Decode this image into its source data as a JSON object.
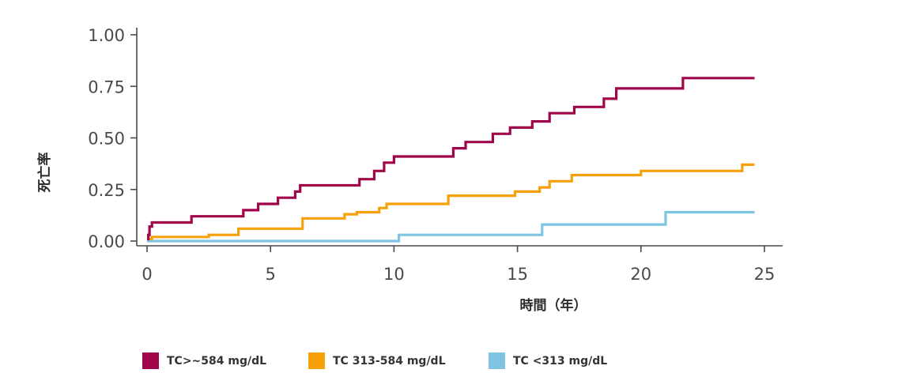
{
  "chart_data": {
    "type": "line",
    "step": true,
    "xlabel": "時間（年）",
    "ylabel": "死亡率",
    "xlim": [
      0,
      25
    ],
    "ylim": [
      0,
      1
    ],
    "xticks": [
      "0",
      "5",
      "10",
      "15",
      "20",
      "25"
    ],
    "yticks": [
      "0.00",
      "0.25",
      "0.50",
      "0.75",
      "1.00"
    ],
    "grid": false,
    "legend_position": "bottom",
    "series": [
      {
        "name": "TC>~584 mg/dL",
        "color": "#a0064a",
        "x": [
          0,
          0.05,
          0.1,
          0.2,
          1.8,
          3.9,
          4.2,
          4.5,
          5.3,
          6.0,
          6.2,
          8.6,
          8.8,
          9.2,
          9.6,
          10.0,
          12.4,
          12.9,
          14.0,
          14.7,
          15.6,
          16.3,
          17.3,
          18.5,
          19.0,
          21.7,
          24.6
        ],
        "y": [
          0.01,
          0.03,
          0.07,
          0.09,
          0.12,
          0.15,
          0.15,
          0.18,
          0.21,
          0.24,
          0.27,
          0.3,
          0.3,
          0.34,
          0.38,
          0.41,
          0.45,
          0.48,
          0.52,
          0.55,
          0.58,
          0.62,
          0.65,
          0.69,
          0.74,
          0.79,
          0.79
        ]
      },
      {
        "name": "TC 313-584 mg/dL",
        "color": "#f7a10a",
        "x": [
          0,
          0.2,
          2.5,
          3.7,
          6.3,
          8.0,
          8.5,
          9.4,
          9.7,
          12.2,
          14.9,
          15.9,
          16.3,
          17.2,
          20.0,
          24.1,
          24.6
        ],
        "y": [
          0.01,
          0.02,
          0.03,
          0.06,
          0.11,
          0.13,
          0.14,
          0.16,
          0.18,
          0.22,
          0.24,
          0.26,
          0.29,
          0.32,
          0.34,
          0.37,
          0.37
        ]
      },
      {
        "name": "TC <313 mg/dL",
        "color": "#7fc4e2",
        "x": [
          0,
          0.2,
          10.2,
          16.0,
          21.0,
          24.6
        ],
        "y": [
          0.0,
          0.0,
          0.03,
          0.08,
          0.14,
          0.14
        ]
      }
    ]
  }
}
